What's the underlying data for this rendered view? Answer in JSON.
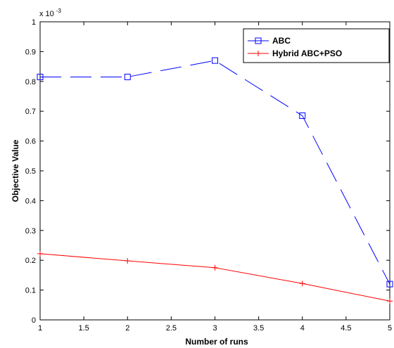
{
  "chart_data": {
    "type": "line",
    "xlabel": "Number of runs",
    "ylabel": "Objective Value",
    "x": [
      1,
      2,
      3,
      4,
      5
    ],
    "xlim": [
      1,
      5
    ],
    "ylim": [
      0,
      1
    ],
    "xticks": [
      "1",
      "1.5",
      "2",
      "2.5",
      "3",
      "3.5",
      "4",
      "4.5",
      "5"
    ],
    "yticks": [
      "0",
      "0.1",
      "0.2",
      "0.3",
      "0.4",
      "0.5",
      "0.6",
      "0.7",
      "0.8",
      "0.9",
      "1"
    ],
    "y_multiplier_label": {
      "base": "x 10",
      "exponent": "-3"
    },
    "grid": false,
    "legend_position": "top-right",
    "series": [
      {
        "name": "ABC",
        "values": [
          0.815,
          0.815,
          0.87,
          0.685,
          0.12
        ],
        "color": "#0000ff",
        "linestyle": "dashed",
        "marker": "square"
      },
      {
        "name": "Hybrid ABC+PSO",
        "values": [
          0.222,
          0.198,
          0.175,
          0.122,
          0.063
        ],
        "color": "#ff0000",
        "linestyle": "solid",
        "marker": "plus"
      }
    ]
  }
}
